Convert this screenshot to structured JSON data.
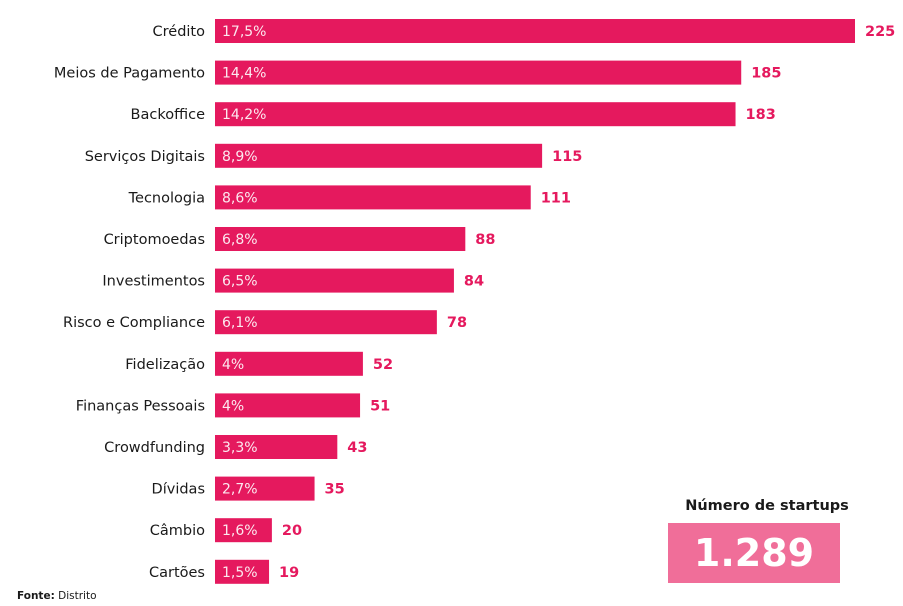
{
  "chart_data": {
    "type": "bar",
    "orientation": "horizontal",
    "categories": [
      "Crédito",
      "Meios de Pagamento",
      "Backoffice",
      "Serviços Digitais",
      "Tecnologia",
      "Criptomoedas",
      "Investimentos",
      "Risco e Compliance",
      "Fidelização",
      "Finanças Pessoais",
      "Crowdfunding",
      "Dívidas",
      "Câmbio",
      "Cartões"
    ],
    "values": [
      225,
      185,
      183,
      115,
      111,
      88,
      84,
      78,
      52,
      51,
      43,
      35,
      20,
      19
    ],
    "percent_labels": [
      "17,5%",
      "14,4%",
      "14,2%",
      "8,9%",
      "8,6%",
      "6,8%",
      "6,5%",
      "6,1%",
      "4%",
      "4%",
      "3,3%",
      "2,7%",
      "1,6%",
      "1,5%"
    ],
    "value_labels": [
      "225",
      "185",
      "183",
      "115",
      "111",
      "88",
      "84",
      "78",
      "52",
      "51",
      "43",
      "35",
      "20",
      "19"
    ],
    "xlim": [
      0,
      225
    ],
    "grid": false,
    "legend": "none",
    "bar_color": "#e5195e",
    "value_label_color": "#e5195e",
    "title": "",
    "xlabel": "",
    "ylabel": ""
  },
  "total": {
    "title": "Número de startups",
    "value": "1.289",
    "box_color": "#f06e99"
  },
  "source": {
    "prefix": "Fonte:",
    "text": "Distrito"
  }
}
